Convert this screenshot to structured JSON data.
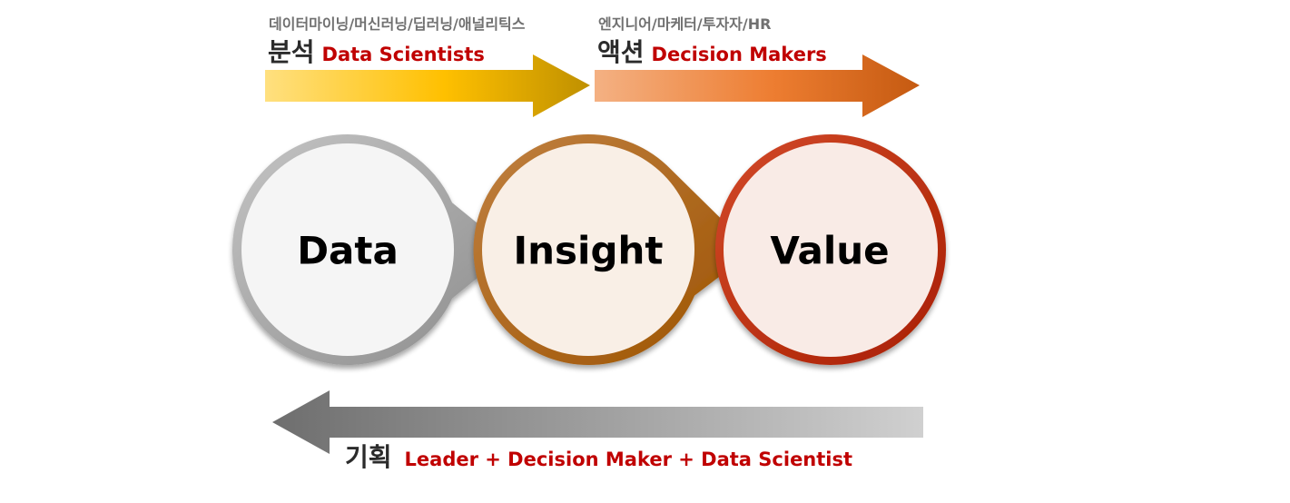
{
  "top_left": {
    "subtitle": "데이터마이닝/머신러닝/딥러닝/애널리틱스",
    "title_kr": "분석",
    "title_en": "Data Scientists",
    "arrow_color_start": "#ffe080",
    "arrow_color_mid": "#ffc000",
    "arrow_color_end": "#bf9000"
  },
  "top_right": {
    "subtitle": "엔지니어/마케터/투자자/HR",
    "title_kr": "액션",
    "title_en": "Decision Makers",
    "arrow_color_start": "#f4b183",
    "arrow_color_mid": "#ed7d31",
    "arrow_color_end": "#c55a11"
  },
  "nodes": [
    {
      "label": "Data",
      "fill": "#f5f5f5",
      "ring": "#a6a6a6"
    },
    {
      "label": "Insight",
      "fill": "#f9efe6",
      "ring": "#b46405"
    },
    {
      "label": "Value",
      "fill": "#f9ebe6",
      "ring": "#c0280a"
    }
  ],
  "bottom": {
    "title_kr": "기획",
    "title_en": "Leader + Decision Maker + Data Scientist",
    "arrow_color_start": "#d0d0d0",
    "arrow_color_end": "#6e6e6e"
  },
  "colors": {
    "accent_text": "#c00000",
    "subtitle_text": "#707070"
  }
}
